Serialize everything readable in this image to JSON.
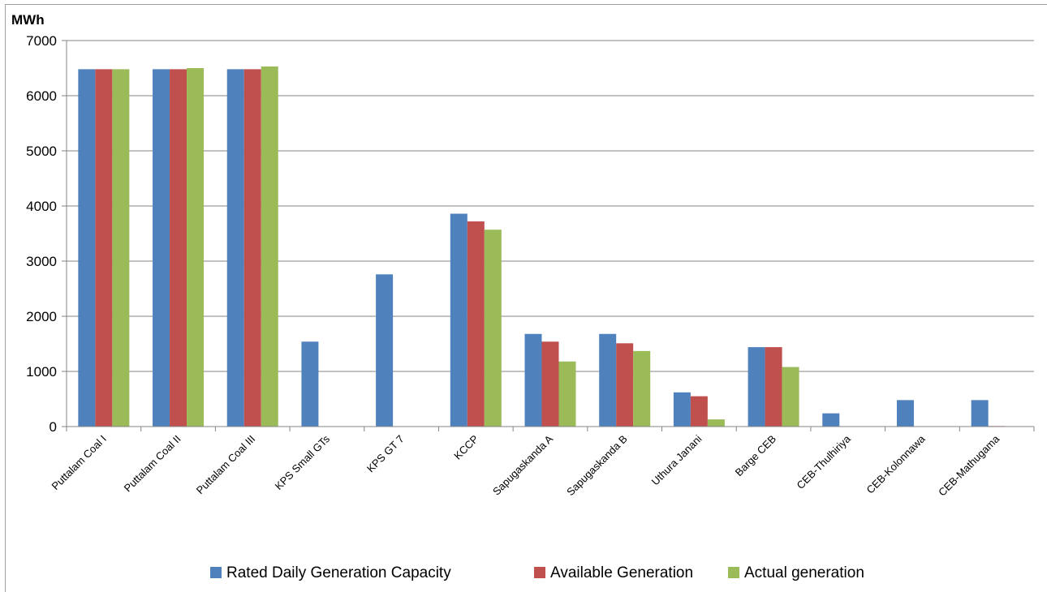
{
  "chart_data": {
    "type": "bar",
    "title": "",
    "ylabel": "MWh",
    "xlabel": "",
    "ylim": [
      0,
      7000
    ],
    "yticks": [
      0,
      1000,
      2000,
      3000,
      4000,
      5000,
      6000,
      7000
    ],
    "grid": true,
    "legend_position": "bottom",
    "categories": [
      "Puttalam Coal I",
      "Puttalam Coal II",
      "Puttalam Coal III",
      "KPS Small GTs",
      "KPS GT 7",
      "KCCP",
      "Sapugaskanda A",
      "Sapugaskanda B",
      "Uthura Janani",
      "Barge CEB",
      "CEB-Thulhiriya",
      "CEB-Kolonnawa",
      "CEB-Mathugama"
    ],
    "series": [
      {
        "name": "Rated Daily Generation Capacity",
        "color": "#4f81bd",
        "values": [
          6480,
          6480,
          6480,
          1540,
          2760,
          3860,
          1680,
          1680,
          620,
          1440,
          240,
          480,
          480
        ]
      },
      {
        "name": "Available Generation",
        "color": "#c0504d",
        "values": [
          6480,
          6480,
          6480,
          0,
          0,
          3720,
          1540,
          1510,
          550,
          1440,
          0,
          0,
          10
        ]
      },
      {
        "name": "Actual generation",
        "color": "#9bbb59",
        "values": [
          6480,
          6500,
          6530,
          0,
          0,
          3570,
          1180,
          1370,
          130,
          1080,
          0,
          0,
          0
        ]
      }
    ]
  }
}
